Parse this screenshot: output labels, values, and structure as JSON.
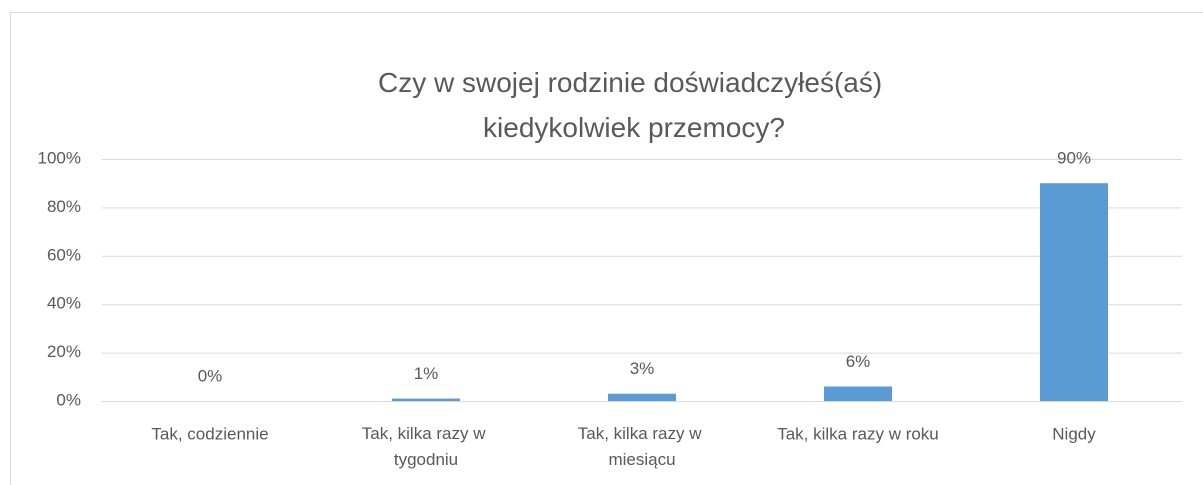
{
  "chart_data": {
    "type": "bar",
    "title": "Czy w swojej rodzinie doświadczyłeś(aś) kiedykolwiek przemocy?",
    "categories": [
      "Tak, codziennie",
      "Tak, kilka razy w tygodniu",
      "Tak, kilka razy w miesiącu",
      "Tak, kilka razy w roku",
      "Nigdy"
    ],
    "values": [
      0,
      1,
      3,
      6,
      90
    ],
    "value_labels": [
      "0%",
      "1%",
      "3%",
      "6%",
      "90%"
    ],
    "color": "#5b9bd5",
    "ylim": [
      0,
      100
    ],
    "yticks": [
      {
        "value": 0,
        "label": "0%"
      },
      {
        "value": 20,
        "label": "20%"
      },
      {
        "value": 40,
        "label": "40%"
      },
      {
        "value": 60,
        "label": "60%"
      },
      {
        "value": 80,
        "label": "80%"
      },
      {
        "value": 100,
        "label": "100%"
      }
    ],
    "grid": true
  }
}
